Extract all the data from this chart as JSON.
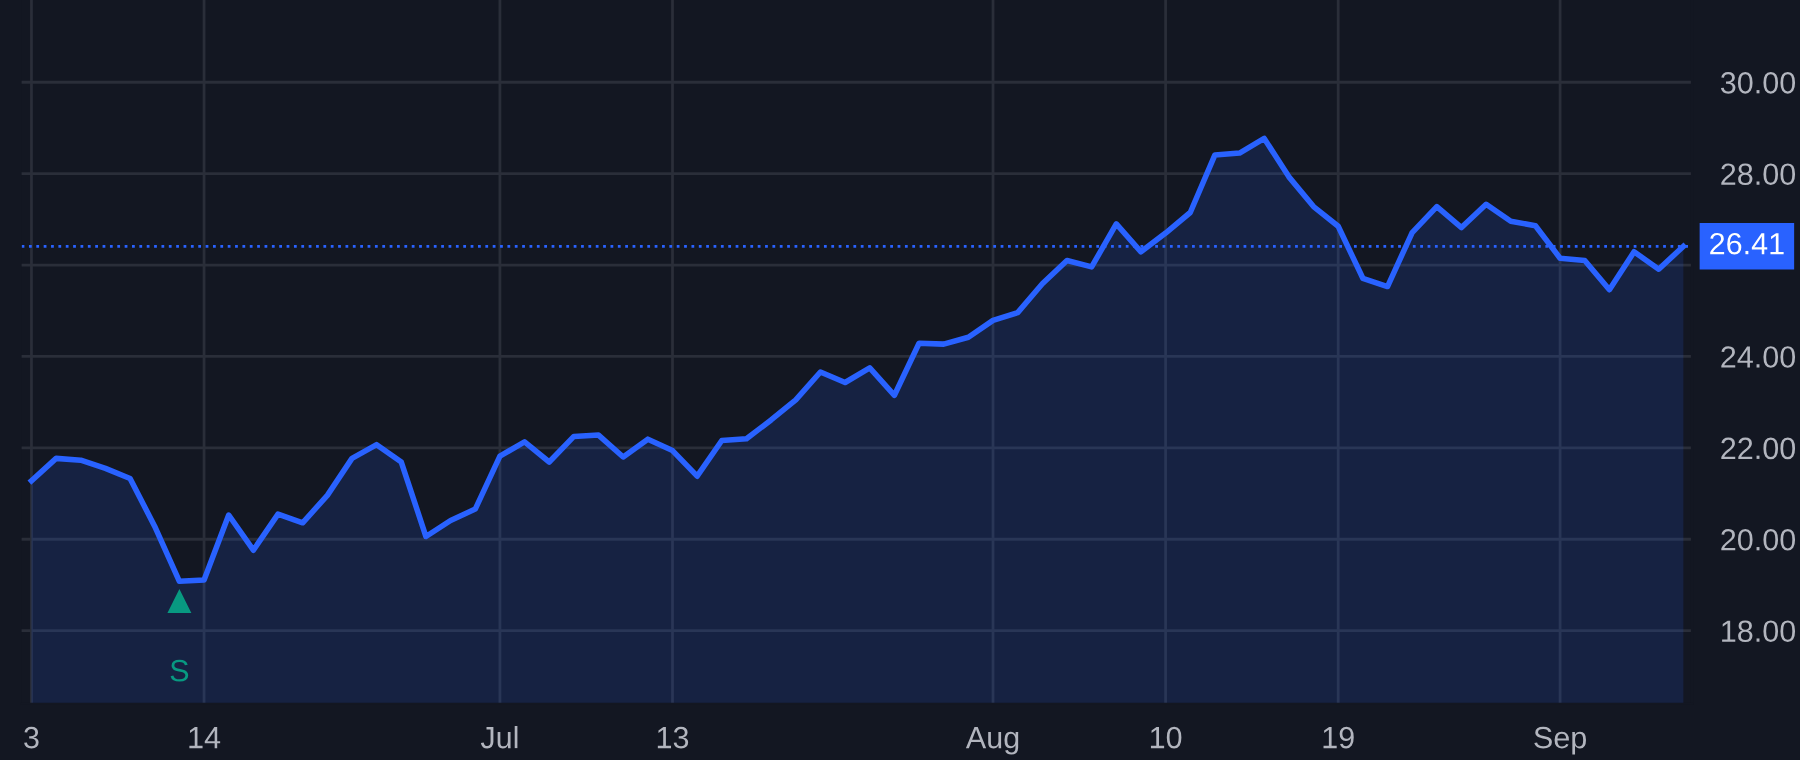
{
  "chart_data": {
    "type": "area",
    "categories": [
      "3",
      null,
      null,
      null,
      null,
      null,
      null,
      "14",
      null,
      null,
      null,
      null,
      null,
      null,
      null,
      null,
      null,
      null,
      null,
      "Jul",
      null,
      null,
      null,
      null,
      null,
      null,
      "13",
      null,
      null,
      null,
      null,
      null,
      null,
      null,
      null,
      null,
      null,
      null,
      null,
      "Aug",
      null,
      null,
      null,
      null,
      null,
      null,
      "10",
      null,
      null,
      null,
      null,
      null,
      null,
      "19",
      null,
      null,
      null,
      null,
      null,
      null,
      null,
      null,
      "Sep",
      null,
      null,
      null,
      null,
      null
    ],
    "series": [
      {
        "color": "#2962ff",
        "values": [
          21.28,
          21.77,
          21.73,
          21.55,
          21.33,
          20.28,
          19.08,
          19.11,
          20.53,
          19.76,
          20.55,
          20.36,
          20.96,
          21.77,
          22.07,
          21.69,
          20.06,
          20.41,
          20.66,
          21.82,
          22.13,
          21.69,
          22.25,
          22.28,
          21.8,
          22.19,
          21.94,
          21.38,
          22.16,
          22.2,
          22.61,
          23.05,
          23.66,
          23.43,
          23.75,
          23.15,
          24.29,
          24.27,
          24.42,
          24.79,
          24.96,
          25.59,
          26.1,
          25.96,
          26.9,
          26.29,
          26.7,
          27.15,
          28.41,
          28.45,
          28.77,
          27.93,
          27.28,
          26.85,
          25.71,
          25.53,
          26.71,
          27.28,
          26.82,
          27.33,
          26.96,
          26.86,
          26.15,
          26.1,
          25.46,
          26.29,
          25.91,
          26.41
        ]
      }
    ],
    "ylim": [
      16.4,
      31.8
    ],
    "yticks": [
      {
        "value": 18,
        "label": "18.00"
      },
      {
        "value": 20,
        "label": "20.00"
      },
      {
        "value": 22,
        "label": "22.00"
      },
      {
        "value": 24,
        "label": "24.00"
      },
      {
        "value": 26,
        "label": null
      },
      {
        "value": 28,
        "label": "28.00"
      },
      {
        "value": 30,
        "label": "30.00"
      }
    ],
    "grid": true,
    "marker": "none",
    "line_style": "solid",
    "ref_lines": [
      {
        "axis": "y",
        "value": 26.41,
        "label": "26.41",
        "color": "#2962ff",
        "line_style": "dotted"
      }
    ],
    "annotations": [
      "S"
    ]
  }
}
